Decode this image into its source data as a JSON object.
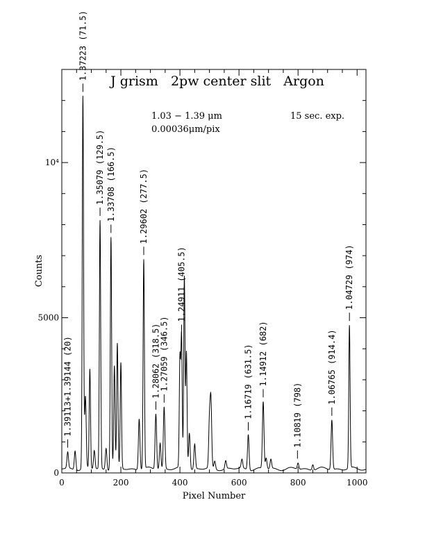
{
  "chart_data": {
    "type": "line",
    "title": "J grism   2pw center slit   Argon",
    "annotations": {
      "wavelength_range": "1.03 − 1.39 μm",
      "dispersion": "0.00036μm/pix",
      "exposure": "15 sec. exp."
    },
    "xlabel": "Pixel Number",
    "ylabel": "Counts",
    "xlim": [
      0,
      1030
    ],
    "ylim": [
      0,
      13000
    ],
    "x_ticks": [
      {
        "value": 0,
        "label": "0"
      },
      {
        "value": 200,
        "label": "200"
      },
      {
        "value": 400,
        "label": "400"
      },
      {
        "value": 600,
        "label": "600"
      },
      {
        "value": 800,
        "label": "800"
      },
      {
        "value": 1000,
        "label": "1000"
      }
    ],
    "y_ticks": [
      {
        "value": 0,
        "label": "0"
      },
      {
        "value": 5000,
        "label": "5000"
      },
      {
        "value": 10000,
        "label": "10⁴"
      }
    ],
    "x_minor_step": 50,
    "y_minor_step": 1000,
    "peaks": [
      [
        20,
        520
      ],
      [
        45,
        620
      ],
      [
        71.5,
        12000
      ],
      [
        80,
        2300
      ],
      [
        95,
        3200
      ],
      [
        110,
        600
      ],
      [
        129.5,
        8000
      ],
      [
        150,
        700
      ],
      [
        166.5,
        7500
      ],
      [
        178,
        3300
      ],
      [
        188,
        4000
      ],
      [
        200,
        3400
      ],
      [
        262,
        1650
      ],
      [
        277.5,
        6750
      ],
      [
        318.5,
        1800
      ],
      [
        333,
        850
      ],
      [
        346.5,
        2000
      ],
      [
        400,
        3500
      ],
      [
        405.5,
        4200
      ],
      [
        415,
        6200
      ],
      [
        422,
        3800
      ],
      [
        432,
        1200
      ],
      [
        450,
        800
      ],
      [
        500,
        1500
      ],
      [
        505,
        2100
      ],
      [
        518,
        250
      ],
      [
        555,
        260
      ],
      [
        610,
        280
      ],
      [
        631.5,
        1150
      ],
      [
        682,
        2150
      ],
      [
        692,
        350
      ],
      [
        708,
        300
      ],
      [
        800,
        200
      ],
      [
        850,
        180
      ],
      [
        914.4,
        1600
      ],
      [
        974,
        4600
      ]
    ],
    "line_labels": [
      {
        "x": 20,
        "text": "1.39113+1.39144 (20)"
      },
      {
        "x": 71.5,
        "text": "1.37223 (71.5)"
      },
      {
        "x": 129.5,
        "text": "1.35079 (129.5)"
      },
      {
        "x": 166.5,
        "text": "1.33708 (166.5)"
      },
      {
        "x": 277.5,
        "text": "1.29602 (277.5)"
      },
      {
        "x": 318.5,
        "text": "1.28062 (318.5)"
      },
      {
        "x": 346.5,
        "text": "1.27059 (346.5)"
      },
      {
        "x": 405.5,
        "text": "1.24911 (405.5)"
      },
      {
        "x": 631.5,
        "text": "1.16719 (631.5)"
      },
      {
        "x": 682,
        "text": "1.14912 (682)"
      },
      {
        "x": 798,
        "text": "1.10819 (798)"
      },
      {
        "x": 914.4,
        "text": "1.06765 (914.4)"
      },
      {
        "x": 974,
        "text": "1.04729 (974)"
      }
    ]
  }
}
